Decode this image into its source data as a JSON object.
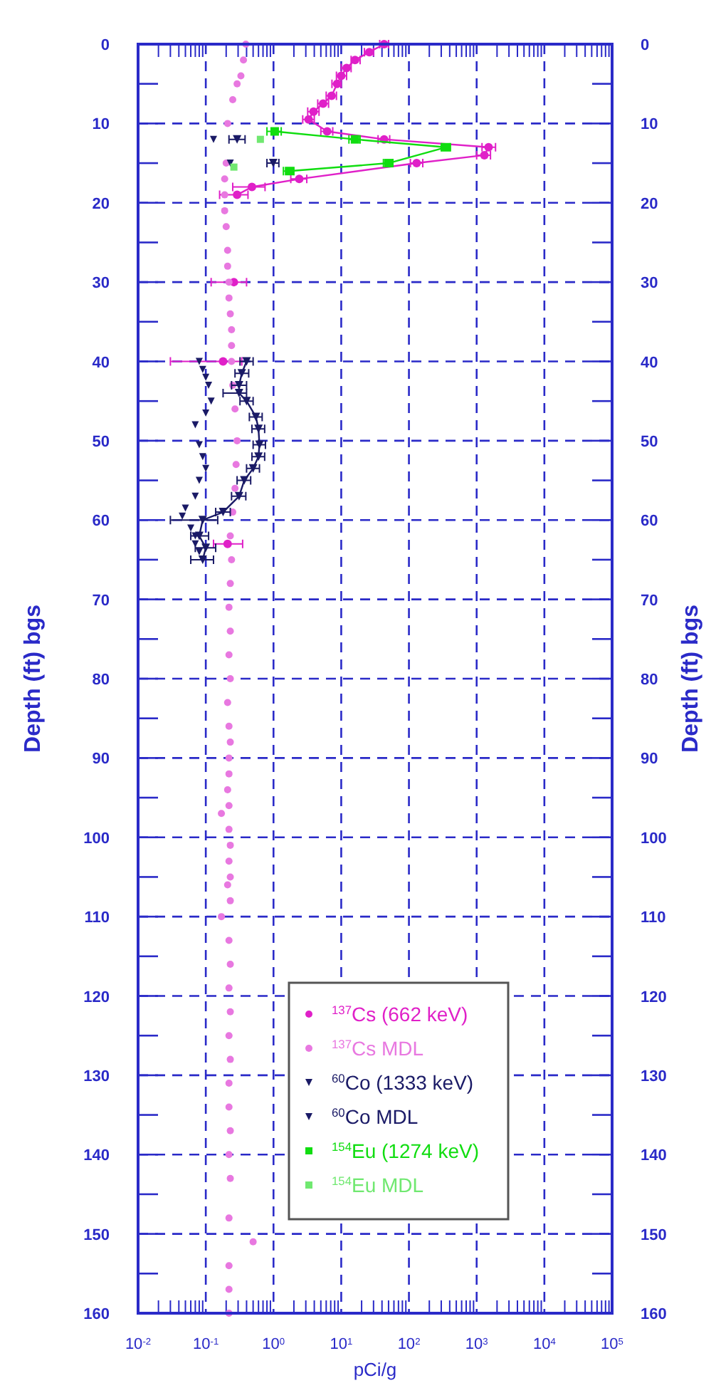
{
  "chart_data": {
    "type": "scatter",
    "xlabel": "pCi/g",
    "ylabel": "Depth (ft) bgs",
    "y2label": "Depth (ft) bgs",
    "log": "x",
    "grid": true,
    "legend": "bottom",
    "xlim": [
      0.01,
      100000
    ],
    "ylim": [
      160,
      0
    ],
    "y2lim": [
      160,
      0
    ],
    "xticks": [
      {
        "value": 0.01,
        "label": "10$^{-2}$"
      },
      {
        "value": 0.02,
        "label": null
      },
      {
        "value": 0.03,
        "label": null
      },
      {
        "value": 0.04,
        "label": null
      },
      {
        "value": 0.05,
        "label": null
      },
      {
        "value": 0.06,
        "label": null
      },
      {
        "value": 0.07,
        "label": null
      },
      {
        "value": 0.08,
        "label": null
      },
      {
        "value": 0.09,
        "label": null
      },
      {
        "value": 0.1,
        "label": "10$^{-1}$"
      },
      {
        "value": 0.2,
        "label": null
      },
      {
        "value": 0.3,
        "label": null
      },
      {
        "value": 0.4,
        "label": null
      },
      {
        "value": 0.5,
        "label": null
      },
      {
        "value": 0.6,
        "label": null
      },
      {
        "value": 0.7,
        "label": null
      },
      {
        "value": 0.8,
        "label": null
      },
      {
        "value": 0.9,
        "label": null
      },
      {
        "value": 1,
        "label": "10$^{0}$"
      },
      {
        "value": 2,
        "label": null
      },
      {
        "value": 3,
        "label": null
      },
      {
        "value": 4,
        "label": null
      },
      {
        "value": 5,
        "label": null
      },
      {
        "value": 6,
        "label": null
      },
      {
        "value": 7,
        "label": null
      },
      {
        "value": 8,
        "label": null
      },
      {
        "value": 9,
        "label": null
      },
      {
        "value": 10,
        "label": "10$^{1}$"
      },
      {
        "value": 20,
        "label": null
      },
      {
        "value": 30,
        "label": null
      },
      {
        "value": 40,
        "label": null
      },
      {
        "value": 50,
        "label": null
      },
      {
        "value": 60,
        "label": null
      },
      {
        "value": 70,
        "label": null
      },
      {
        "value": 80,
        "label": null
      },
      {
        "value": 90,
        "label": null
      },
      {
        "value": 100,
        "label": "10$^{2}$"
      },
      {
        "value": 200,
        "label": null
      },
      {
        "value": 300,
        "label": null
      },
      {
        "value": 400,
        "label": null
      },
      {
        "value": 500,
        "label": null
      },
      {
        "value": 600,
        "label": null
      },
      {
        "value": 700,
        "label": null
      },
      {
        "value": 800,
        "label": null
      },
      {
        "value": 900,
        "label": null
      },
      {
        "value": 1000,
        "label": "10$^{3}$"
      },
      {
        "value": 2000,
        "label": null
      },
      {
        "value": 3000,
        "label": null
      },
      {
        "value": 4000,
        "label": null
      },
      {
        "value": 5000,
        "label": null
      },
      {
        "value": 6000,
        "label": null
      },
      {
        "value": 7000,
        "label": null
      },
      {
        "value": 8000,
        "label": null
      },
      {
        "value": 9000,
        "label": null
      },
      {
        "value": 10000,
        "label": "10$^{4}$"
      },
      {
        "value": 20000,
        "label": null
      },
      {
        "value": 30000,
        "label": null
      },
      {
        "value": 40000,
        "label": null
      },
      {
        "value": 50000,
        "label": null
      },
      {
        "value": 60000,
        "label": null
      },
      {
        "value": 70000,
        "label": null
      },
      {
        "value": 80000,
        "label": null
      },
      {
        "value": 90000,
        "label": null
      },
      {
        "value": 100000,
        "label": "10$^{5}$"
      }
    ],
    "yticks": [
      0,
      {
        "value": 5,
        "label": null
      },
      10,
      {
        "value": 15,
        "label": null
      },
      20,
      {
        "value": 25,
        "label": null
      },
      30,
      {
        "value": 35,
        "label": null
      },
      40,
      {
        "value": 45,
        "label": null
      },
      50,
      {
        "value": 55,
        "label": null
      },
      60,
      {
        "value": 65,
        "label": null
      },
      70,
      {
        "value": 75,
        "label": null
      },
      80,
      {
        "value": 85,
        "label": null
      },
      90,
      {
        "value": 95,
        "label": null
      },
      100,
      {
        "value": 105,
        "label": null
      },
      110,
      {
        "value": 115,
        "label": null
      },
      120,
      {
        "value": 125,
        "label": null
      },
      130,
      {
        "value": 135,
        "label": null
      },
      140,
      {
        "value": 145,
        "label": null
      },
      150,
      {
        "value": 155,
        "label": null
      },
      160
    ],
    "y2ticks": [
      0,
      {
        "value": 5,
        "label": null
      },
      10,
      {
        "value": 15,
        "label": null
      },
      20,
      {
        "value": 25,
        "label": null
      },
      30,
      {
        "value": 35,
        "label": null
      },
      40,
      {
        "value": 45,
        "label": null
      },
      50,
      {
        "value": 55,
        "label": null
      },
      60,
      {
        "value": 65,
        "label": null
      },
      70,
      {
        "value": 75,
        "label": null
      },
      80,
      {
        "value": 85,
        "label": null
      },
      90,
      {
        "value": 95,
        "label": null
      },
      100,
      {
        "value": 105,
        "label": null
      },
      110,
      {
        "value": 115,
        "label": null
      },
      120,
      {
        "value": 125,
        "label": null
      },
      130,
      {
        "value": 135,
        "label": null
      },
      140,
      {
        "value": 145,
        "label": null
      },
      150,
      {
        "value": 155,
        "label": null
      },
      160
    ],
    "series": [
      {
        "name": "$^{137}$Cs (662 keV)",
        "type": "line",
        "color": "#e020c8",
        "marker": "circle",
        "line_style": "solid",
        "x": [
          43,
          26,
          16,
          12,
          10,
          8.7,
          7.2,
          5.4,
          3.9,
          3.3,
          6.2,
          43,
          1500,
          1300,
          130,
          2.4,
          0.48,
          0.29,
          null,
          0.26,
          null,
          0.18,
          null,
          0.21
        ],
        "values": [
          0,
          1,
          2,
          3,
          4,
          5,
          6.5,
          7.5,
          8.5,
          9.5,
          11,
          12,
          13,
          14,
          15,
          17,
          18,
          19,
          null,
          30,
          null,
          40,
          null,
          63
        ],
        "xerrors": [
          [
            37,
            50
          ],
          [
            22,
            30
          ],
          [
            14,
            19
          ],
          [
            10,
            14
          ],
          [
            8.5,
            12
          ],
          [
            7.3,
            10
          ],
          [
            6,
            8.5
          ],
          [
            4.5,
            6.5
          ],
          [
            3.2,
            4.7
          ],
          [
            2.7,
            4
          ],
          [
            5,
            7.5
          ],
          [
            35,
            52
          ],
          [
            1200,
            1900
          ],
          [
            1000,
            1600
          ],
          [
            105,
            160
          ],
          [
            1.8,
            3.1
          ],
          [
            0.25,
            0.75
          ],
          [
            0.16,
            0.42
          ],
          null,
          [
            0.12,
            0.4
          ],
          null,
          [
            0.03,
            0.34
          ],
          null,
          [
            0.13,
            0.35
          ]
        ]
      },
      {
        "name": "$^{137}$Cs MDL",
        "type": "scatter",
        "color": "#e878e0",
        "marker": "circle",
        "x": [
          0.39,
          0.36,
          0.33,
          0.29,
          0.25,
          0.21,
          0.2,
          0.19,
          0.19,
          0.19,
          0.2,
          0.21,
          0.21,
          0.22,
          0.22,
          0.23,
          0.24,
          0.24,
          0.24,
          0.25,
          0.27,
          0.29,
          0.28,
          0.27,
          0.25,
          0.23,
          0.24,
          0.23,
          0.22,
          0.23,
          0.22,
          0.23,
          0.21,
          0.22,
          0.23,
          0.22,
          0.22,
          0.21,
          0.22,
          0.17,
          0.22,
          0.23,
          0.22,
          0.23,
          0.21,
          0.23,
          0.17,
          0.22,
          0.23,
          0.22,
          0.23,
          0.22,
          0.23,
          0.22,
          0.22,
          0.23,
          0.22,
          0.23,
          0.22,
          0.5,
          0.22,
          0.22,
          0.22
        ],
        "values": [
          0,
          2,
          4,
          5,
          7,
          10,
          15,
          17,
          19,
          21,
          23,
          26,
          28,
          30,
          32,
          34,
          36,
          38,
          40,
          43,
          46,
          50,
          53,
          56,
          59,
          62,
          65,
          68,
          71,
          74,
          77,
          80,
          83,
          86,
          88,
          90,
          92,
          94,
          96,
          97,
          99,
          101,
          103,
          105,
          106,
          108,
          110,
          113,
          116,
          119,
          122,
          125,
          128,
          131,
          134,
          137,
          140,
          143,
          148,
          151,
          154,
          157,
          160
        ]
      },
      {
        "name": "$^{60}$Co (1333 keV)",
        "type": "line",
        "color": "#1a1a66",
        "marker": "triangle",
        "line_style": "solid",
        "x": [
          0.29,
          null,
          0.99,
          null,
          0.4,
          0.34,
          0.31,
          0.31,
          0.4,
          0.55,
          0.6,
          0.62,
          0.6,
          0.5,
          0.37,
          0.31,
          0.18,
          0.09,
          0.08,
          0.1,
          0.09
        ],
        "values": [
          12,
          null,
          15,
          null,
          40,
          41.5,
          43,
          44,
          45,
          47,
          48.5,
          50.5,
          52,
          53.5,
          55,
          57,
          59,
          60,
          62,
          63.5,
          65
        ],
        "xerrors": [
          [
            0.22,
            0.38
          ],
          null,
          [
            0.8,
            1.2
          ],
          null,
          [
            0.32,
            0.5
          ],
          [
            0.27,
            0.43
          ],
          [
            0.24,
            0.4
          ],
          [
            0.18,
            0.4
          ],
          [
            0.32,
            0.5
          ],
          [
            0.44,
            0.68
          ],
          [
            0.48,
            0.74
          ],
          [
            0.5,
            0.76
          ],
          [
            0.48,
            0.74
          ],
          [
            0.4,
            0.62
          ],
          [
            0.29,
            0.46
          ],
          [
            0.24,
            0.39
          ],
          [
            0.14,
            0.23
          ],
          [
            0.03,
            0.15
          ],
          [
            0.06,
            0.11
          ],
          [
            0.07,
            0.14
          ],
          [
            0.06,
            0.13
          ]
        ]
      },
      {
        "name": "$^{60}$Co MDL",
        "type": "scatter",
        "color": "#1a1a66",
        "marker": "triangle",
        "x": [
          0.13,
          0.23,
          0.08,
          0.09,
          0.1,
          0.11,
          0.12,
          0.1,
          0.07,
          0.08,
          0.09,
          0.1,
          0.08,
          0.07,
          0.05,
          0.045,
          0.06,
          0.07,
          0.07,
          0.08
        ],
        "values": [
          12,
          15,
          40,
          41,
          42,
          43,
          45,
          46.5,
          48,
          50.5,
          52,
          53.5,
          55,
          57,
          58.5,
          59.5,
          61,
          62,
          63,
          64
        ]
      },
      {
        "name": "$^{154}$Eu (1274 keV)",
        "type": "line",
        "color": "#10dd10",
        "marker": "square",
        "line_style": "solid",
        "x": [
          1.04,
          16,
          350,
          50,
          1.7
        ],
        "values": [
          11,
          12,
          13,
          15,
          16
        ],
        "xerrors": [
          [
            0.8,
            1.3
          ],
          [
            13,
            19
          ],
          [
            300,
            410
          ],
          [
            42,
            58
          ],
          [
            1.4,
            2
          ]
        ]
      },
      {
        "name": "$^{154}$Eu MDL",
        "type": "scatter",
        "color": "#70e870",
        "marker": "square",
        "x": [
          0.64,
          0.26
        ],
        "values": [
          12,
          15.5
        ]
      }
    ]
  }
}
